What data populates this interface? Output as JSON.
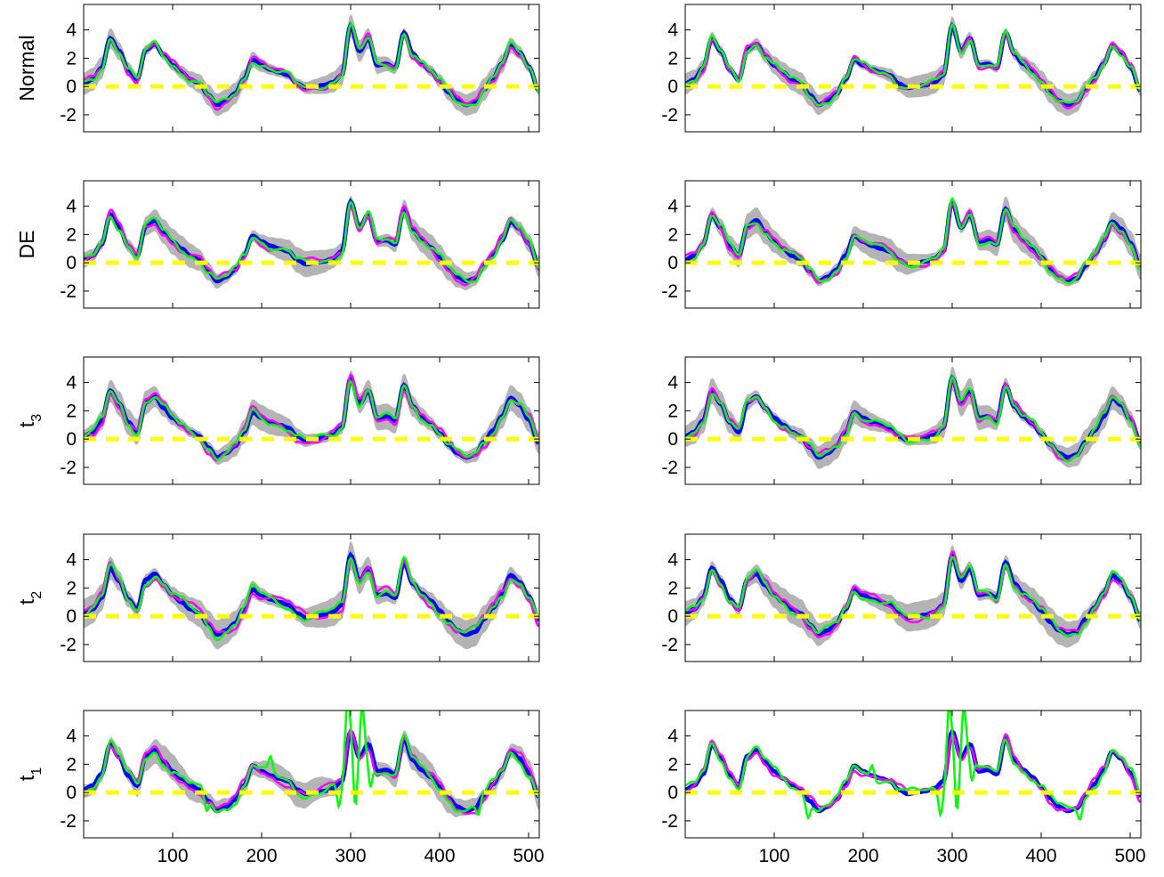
{
  "chart_data": {
    "type": "line",
    "layout": {
      "rows": 5,
      "cols": 2
    },
    "row_labels": [
      {
        "main": "Normal",
        "sub": ""
      },
      {
        "main": "DE",
        "sub": ""
      },
      {
        "main": "t",
        "sub": "3"
      },
      {
        "main": "t",
        "sub": "2"
      },
      {
        "main": "t",
        "sub": "1"
      }
    ],
    "xlim": [
      0,
      512
    ],
    "ylim": [
      -3.2,
      5.8
    ],
    "xticks": [
      100,
      200,
      300,
      400,
      500
    ],
    "yticks": [
      -2,
      0,
      2,
      4
    ],
    "colors": {
      "band": "#b4b4b4",
      "truth": "#0000ff",
      "estimate_a": "#ff00ff",
      "estimate_b": "#00ff00",
      "zero_line": "#ffff00"
    },
    "reference_line": {
      "y": 0,
      "style": "dashed"
    },
    "x": [
      0,
      10,
      20,
      30,
      40,
      50,
      60,
      70,
      80,
      90,
      100,
      110,
      120,
      130,
      140,
      150,
      160,
      170,
      180,
      190,
      200,
      210,
      220,
      230,
      240,
      250,
      260,
      270,
      280,
      290,
      300,
      310,
      320,
      330,
      340,
      350,
      360,
      370,
      380,
      390,
      400,
      410,
      420,
      430,
      440,
      450,
      460,
      470,
      480,
      490,
      500,
      512
    ],
    "signal": [
      0.2,
      0.5,
      1.3,
      3.4,
      2.5,
      1.2,
      0.5,
      2.6,
      3.0,
      2.2,
      1.5,
      1.0,
      0.5,
      0.2,
      -0.6,
      -1.3,
      -1.0,
      -0.5,
      0.5,
      1.9,
      1.5,
      1.2,
      1.0,
      0.8,
      0.2,
      -0.1,
      0.0,
      0.1,
      0.3,
      0.8,
      4.3,
      2.5,
      3.4,
      1.5,
      1.6,
      1.3,
      3.8,
      2.3,
      1.6,
      1.1,
      0.4,
      -0.4,
      -1.0,
      -1.3,
      -1.1,
      -0.2,
      0.6,
      1.6,
      2.9,
      2.4,
      1.4,
      -0.3
    ],
    "band_halfwidth": [
      0.7,
      0.8,
      0.8,
      0.9,
      0.8
    ],
    "spikes": [
      {
        "x": 296,
        "dy": 3.2
      },
      {
        "x": 305,
        "dy": -4.5
      },
      {
        "x": 313,
        "dy": 3.6
      },
      {
        "x": 322,
        "dy": -2.5
      },
      {
        "x": 287,
        "dy": -2.0
      },
      {
        "x": 210,
        "dy": 1.0
      },
      {
        "x": 138,
        "dy": -0.9
      },
      {
        "x": 444,
        "dy": -0.9
      }
    ],
    "panels": [
      {
        "row": 0,
        "col": 0,
        "band": true,
        "a_offset": 0.25,
        "b_offset": 0.15,
        "spiky": false
      },
      {
        "row": 0,
        "col": 1,
        "band": true,
        "a_offset": 0.2,
        "b_offset": 0.15,
        "spiky": false
      },
      {
        "row": 1,
        "col": 0,
        "band": true,
        "a_offset": 0.3,
        "b_offset": 0.2,
        "spiky": false
      },
      {
        "row": 1,
        "col": 1,
        "band": true,
        "a_offset": 0.25,
        "b_offset": 0.2,
        "spiky": false
      },
      {
        "row": 2,
        "col": 0,
        "band": true,
        "a_offset": 0.35,
        "b_offset": 0.2,
        "spiky": false
      },
      {
        "row": 2,
        "col": 1,
        "band": true,
        "a_offset": 0.25,
        "b_offset": 0.2,
        "spiky": false
      },
      {
        "row": 3,
        "col": 0,
        "band": true,
        "a_offset": 0.4,
        "b_offset": 0.3,
        "spiky": false
      },
      {
        "row": 3,
        "col": 1,
        "band": true,
        "a_offset": 0.3,
        "b_offset": 0.25,
        "spiky": false
      },
      {
        "row": 4,
        "col": 0,
        "band": true,
        "a_offset": 0.35,
        "b_offset": 0.3,
        "spiky": true
      },
      {
        "row": 4,
        "col": 1,
        "band": false,
        "a_offset": 0.3,
        "b_offset": 0.3,
        "spiky": true
      }
    ]
  }
}
